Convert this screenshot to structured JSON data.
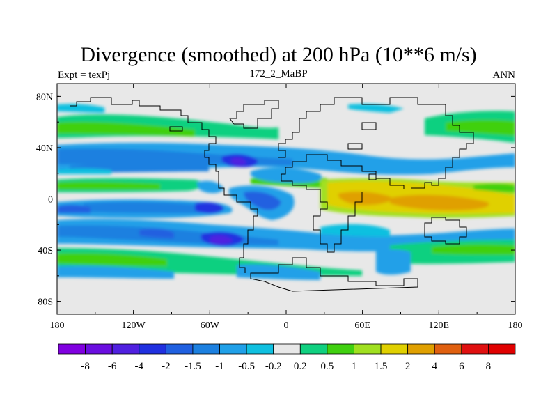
{
  "chart_data": {
    "type": "heatmap",
    "title": "Divergence (smoothed) at 200 hPa (10**6 m/s)",
    "subtitle_left": "Expt = texPj",
    "subtitle_center": "172_2_MaBP",
    "subtitle_right": "ANN",
    "x_ticks": [
      {
        "value": -180,
        "label": "180"
      },
      {
        "value": -120,
        "label": "120W"
      },
      {
        "value": -60,
        "label": "60W"
      },
      {
        "value": 0,
        "label": "0"
      },
      {
        "value": 60,
        "label": "60E"
      },
      {
        "value": 120,
        "label": "120E"
      },
      {
        "value": 180,
        "label": "180"
      }
    ],
    "y_ticks": [
      {
        "value": 80,
        "label": "80N"
      },
      {
        "value": 40,
        "label": "40N"
      },
      {
        "value": 0,
        "label": "0"
      },
      {
        "value": -40,
        "label": "40S"
      },
      {
        "value": -80,
        "label": "80S"
      }
    ],
    "xlim": [
      -180,
      180
    ],
    "ylim": [
      -90,
      90
    ],
    "colorbar_levels": [
      "-8",
      "-6",
      "-4",
      "-2",
      "-1.5",
      "-1",
      "-0.5",
      "-0.2",
      "0.2",
      "0.5",
      "1",
      "1.5",
      "2",
      "4",
      "6",
      "8"
    ],
    "colorbar_colors": [
      "#8000e0",
      "#6a0ee0",
      "#5020e0",
      "#2030e0",
      "#2060e0",
      "#1c80e0",
      "#20a0e8",
      "#10c0e0",
      "#e8e8e8",
      "#10d080",
      "#40d010",
      "#a0e020",
      "#e0d000",
      "#e0a000",
      "#e06010",
      "#e01010",
      "#e00000"
    ],
    "field_description": "Zonal bands: divergence (yellow/orange) over tropical Africa-Indian Ocean-West Pacific, convergence (blue) over subtropical Atlantic/Americas and eastern Pacific; green bands at midlatitudes."
  }
}
